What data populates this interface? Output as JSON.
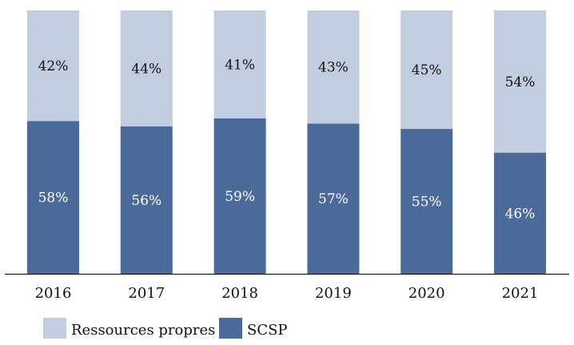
{
  "chart_data": {
    "type": "bar",
    "stacked": true,
    "title": "",
    "xlabel": "",
    "ylabel": "",
    "ylim": [
      0,
      100
    ],
    "grid": false,
    "categories": [
      "2016",
      "2017",
      "2018",
      "2019",
      "2020",
      "2021"
    ],
    "series": [
      {
        "name": "SCSP",
        "color": "#4A6A99",
        "label_color": "#ffffff",
        "values": [
          58,
          56,
          59,
          57,
          55,
          46
        ],
        "labels": [
          "58%",
          "56%",
          "59%",
          "57%",
          "55%",
          "46%"
        ]
      },
      {
        "name": "Ressources propres",
        "color": "#C3CDE0",
        "label_color": "#111111",
        "values": [
          42,
          44,
          41,
          43,
          45,
          54
        ],
        "labels": [
          "42%",
          "44%",
          "41%",
          "43%",
          "45%",
          "54%"
        ]
      }
    ],
    "legend": {
      "placement": "bottom-left",
      "entries": [
        "Ressources propres",
        "SCSP"
      ]
    }
  }
}
